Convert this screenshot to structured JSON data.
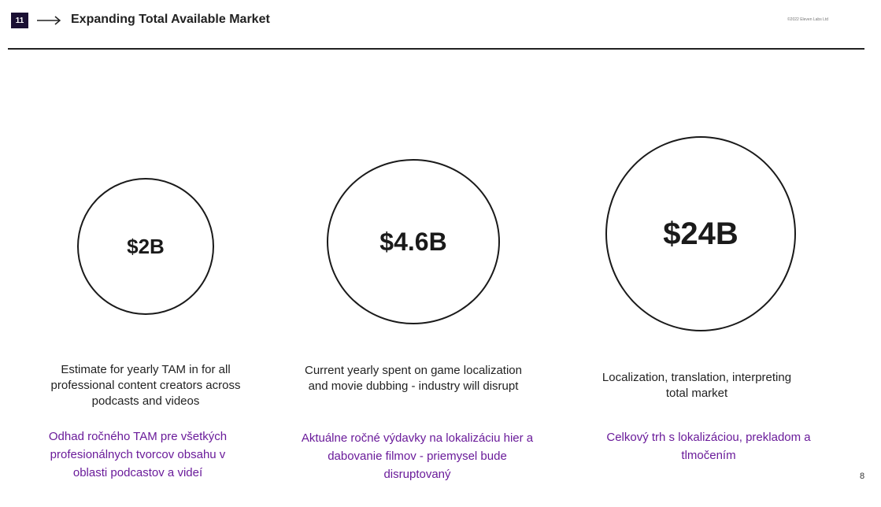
{
  "header": {
    "slide_number": "11",
    "title": "Expanding Total Available Market",
    "copyright": "©2022 Eleven Labs Ltd"
  },
  "markets": [
    {
      "value": "$2B",
      "description": "Estimate for yearly TAM in for all professional content creators across podcasts and videos",
      "translation": "Odhad ročného TAM pre všetkých profesionálnych tvorcov obsahu v oblasti podcastov a videí"
    },
    {
      "value": "$4.6B",
      "description": "Current yearly spent on game localization and movie dubbing - industry will disrupt",
      "translation": "Aktuálne ročné výdavky na lokalizáciu hier a dabovanie filmov - priemysel bude disruptovaný"
    },
    {
      "value": "$24B",
      "description": "Localization, translation, interpreting total market",
      "translation": "Celkový trh s lokalizáciou, prekladom a tlmočením"
    }
  ],
  "page_number": "8",
  "colors": {
    "translation_text": "#6a1b9a",
    "badge_background": "#1a1033"
  },
  "icons": {
    "arrow": "long-right-arrow"
  }
}
